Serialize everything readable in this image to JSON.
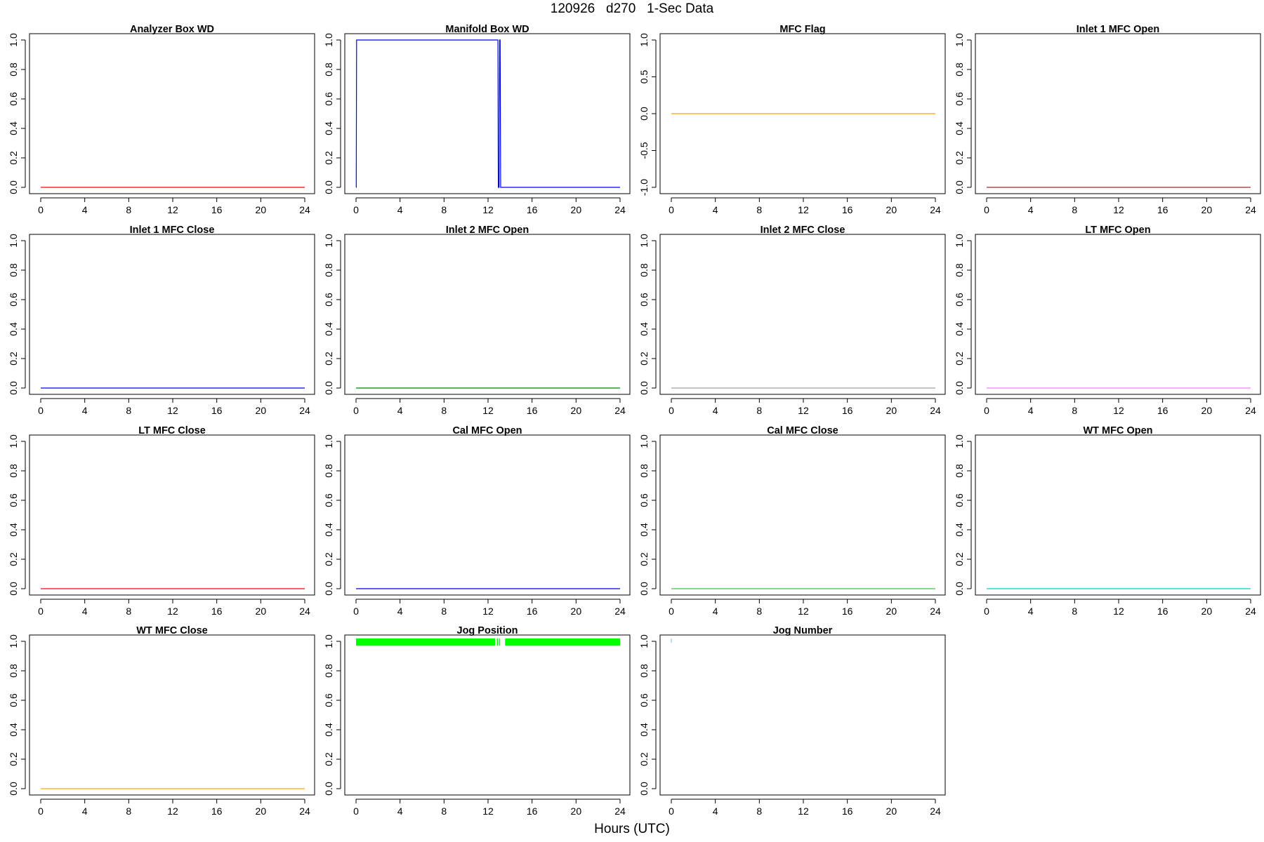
{
  "figure": {
    "title": "120926   d270   1-Sec Data",
    "xlabel": "Hours (UTC)"
  },
  "chart_data": [
    {
      "type": "line",
      "title": "Analyzer Box WD",
      "color": "#ff0000",
      "xlim": [
        0,
        24
      ],
      "ylim": [
        0,
        1
      ],
      "xticks": [
        0,
        4,
        8,
        12,
        16,
        20,
        24
      ],
      "yticks": [
        "0.0",
        "0.2",
        "0.4",
        "0.6",
        "0.8",
        "1.0"
      ],
      "x": [
        0,
        24
      ],
      "y": [
        0,
        0
      ]
    },
    {
      "type": "line",
      "title": "Manifold Box WD",
      "color": "#0000ff",
      "xlim": [
        0,
        24
      ],
      "ylim": [
        0,
        1
      ],
      "xticks": [
        0,
        4,
        8,
        12,
        16,
        20,
        24
      ],
      "yticks": [
        "0.0",
        "0.2",
        "0.4",
        "0.6",
        "0.8",
        "1.0"
      ],
      "x": [
        0,
        0.02,
        0.05,
        12.9,
        12.93,
        13.0,
        13.05,
        13.1,
        13.15,
        13.2,
        24
      ],
      "y": [
        0,
        0,
        1,
        1,
        0,
        0,
        1,
        1,
        0,
        0,
        0
      ]
    },
    {
      "type": "line",
      "title": "MFC Flag",
      "color": "#ffa500",
      "xlim": [
        0,
        24
      ],
      "ylim": [
        -1,
        1
      ],
      "xticks": [
        0,
        4,
        8,
        12,
        16,
        20,
        24
      ],
      "yticks": [
        "-1.0",
        "-0.5",
        "0.0",
        "0.5",
        "1.0"
      ],
      "x": [
        0,
        24
      ],
      "y": [
        0,
        0
      ]
    },
    {
      "type": "line",
      "title": "Inlet 1 MFC Open",
      "color": "#a52a2a",
      "xlim": [
        0,
        24
      ],
      "ylim": [
        0,
        1
      ],
      "xticks": [
        0,
        4,
        8,
        12,
        16,
        20,
        24
      ],
      "yticks": [
        "0.0",
        "0.2",
        "0.4",
        "0.6",
        "0.8",
        "1.0"
      ],
      "x": [
        0,
        24
      ],
      "y": [
        0,
        0
      ]
    },
    {
      "type": "line",
      "title": "Inlet 1 MFC Close",
      "color": "#0000ff",
      "xlim": [
        0,
        24
      ],
      "ylim": [
        0,
        1
      ],
      "xticks": [
        0,
        4,
        8,
        12,
        16,
        20,
        24
      ],
      "yticks": [
        "0.0",
        "0.2",
        "0.4",
        "0.6",
        "0.8",
        "1.0"
      ],
      "x": [
        0,
        24
      ],
      "y": [
        0,
        0
      ]
    },
    {
      "type": "line",
      "title": "Inlet 2 MFC Open",
      "color": "#008000",
      "xlim": [
        0,
        24
      ],
      "ylim": [
        0,
        1
      ],
      "xticks": [
        0,
        4,
        8,
        12,
        16,
        20,
        24
      ],
      "yticks": [
        "0.0",
        "0.2",
        "0.4",
        "0.6",
        "0.8",
        "1.0"
      ],
      "x": [
        0,
        24
      ],
      "y": [
        0,
        0
      ]
    },
    {
      "type": "line",
      "title": "Inlet 2 MFC Close",
      "color": "#a0a0a0",
      "xlim": [
        0,
        24
      ],
      "ylim": [
        0,
        1
      ],
      "xticks": [
        0,
        4,
        8,
        12,
        16,
        20,
        24
      ],
      "yticks": [
        "0.0",
        "0.2",
        "0.4",
        "0.6",
        "0.8",
        "1.0"
      ],
      "x": [
        0,
        24
      ],
      "y": [
        0,
        0
      ]
    },
    {
      "type": "line",
      "title": "LT MFC Open",
      "color": "#ee82ee",
      "xlim": [
        0,
        24
      ],
      "ylim": [
        0,
        1
      ],
      "xticks": [
        0,
        4,
        8,
        12,
        16,
        20,
        24
      ],
      "yticks": [
        "0.0",
        "0.2",
        "0.4",
        "0.6",
        "0.8",
        "1.0"
      ],
      "x": [
        0,
        24
      ],
      "y": [
        0,
        0
      ]
    },
    {
      "type": "line",
      "title": "LT MFC Close",
      "color": "#ff0000",
      "xlim": [
        0,
        24
      ],
      "ylim": [
        0,
        1
      ],
      "xticks": [
        0,
        4,
        8,
        12,
        16,
        20,
        24
      ],
      "yticks": [
        "0.0",
        "0.2",
        "0.4",
        "0.6",
        "0.8",
        "1.0"
      ],
      "x": [
        0,
        24
      ],
      "y": [
        0,
        0
      ]
    },
    {
      "type": "line",
      "title": "Cal MFC Open",
      "color": "#0000cd",
      "xlim": [
        0,
        24
      ],
      "ylim": [
        0,
        1
      ],
      "xticks": [
        0,
        4,
        8,
        12,
        16,
        20,
        24
      ],
      "yticks": [
        "0.0",
        "0.2",
        "0.4",
        "0.6",
        "0.8",
        "1.0"
      ],
      "x": [
        0,
        24
      ],
      "y": [
        0,
        0
      ]
    },
    {
      "type": "line",
      "title": "Cal MFC Close",
      "color": "#32cd32",
      "xlim": [
        0,
        24
      ],
      "ylim": [
        0,
        1
      ],
      "xticks": [
        0,
        4,
        8,
        12,
        16,
        20,
        24
      ],
      "yticks": [
        "0.0",
        "0.2",
        "0.4",
        "0.6",
        "0.8",
        "1.0"
      ],
      "x": [
        0,
        24
      ],
      "y": [
        0,
        0
      ]
    },
    {
      "type": "line",
      "title": "WT MFC Open",
      "color": "#00ced1",
      "xlim": [
        0,
        24
      ],
      "ylim": [
        0,
        1
      ],
      "xticks": [
        0,
        4,
        8,
        12,
        16,
        20,
        24
      ],
      "yticks": [
        "0.0",
        "0.2",
        "0.4",
        "0.6",
        "0.8",
        "1.0"
      ],
      "x": [
        0,
        24
      ],
      "y": [
        0,
        0
      ]
    },
    {
      "type": "line",
      "title": "WT MFC Close",
      "color": "#ffa500",
      "xlim": [
        0,
        24
      ],
      "ylim": [
        0,
        1
      ],
      "xticks": [
        0,
        4,
        8,
        12,
        16,
        20,
        24
      ],
      "yticks": [
        "0.0",
        "0.2",
        "0.4",
        "0.6",
        "0.8",
        "1.0"
      ],
      "x": [
        0,
        24
      ],
      "y": [
        0,
        0
      ]
    },
    {
      "type": "bar",
      "title": "Jog Position",
      "color": "#00ff00",
      "xlim": [
        0,
        24
      ],
      "ylim": [
        0,
        1
      ],
      "xticks": [
        0,
        4,
        8,
        12,
        16,
        20,
        24
      ],
      "yticks": [
        "0.0",
        "0.2",
        "0.4",
        "0.6",
        "0.8",
        "1.0"
      ],
      "band_y": [
        0.97,
        1.02
      ],
      "segments": [
        [
          0,
          12.65
        ],
        [
          12.8,
          12.9
        ],
        [
          13.0,
          13.1
        ],
        [
          13.55,
          24
        ]
      ]
    },
    {
      "type": "line",
      "title": "Jog Number",
      "color": "#87ceeb",
      "xlim": [
        0,
        24
      ],
      "ylim": [
        0,
        1
      ],
      "xticks": [
        0,
        4,
        8,
        12,
        16,
        20,
        24
      ],
      "yticks": [
        "0.0",
        "0.2",
        "0.4",
        "0.6",
        "0.8",
        "1.0"
      ],
      "x": [
        0.0,
        0.0
      ],
      "y": [
        0.99,
        1.02
      ]
    }
  ]
}
